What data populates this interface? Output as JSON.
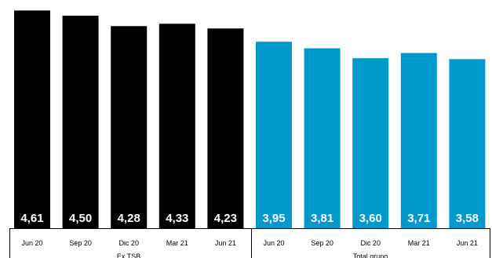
{
  "chart_data": {
    "type": "bar",
    "title": "",
    "xlabel": "",
    "ylabel": "",
    "ylim": [
      0,
      4.7
    ],
    "grid": false,
    "legend": "none",
    "categories": [
      "Jun 20",
      "Sep 20",
      "Dic 20",
      "Mar 21",
      "Jun 21",
      "Jun 20",
      "Sep 20",
      "Dic 20",
      "Mar 21",
      "Jun 21"
    ],
    "values": [
      4.61,
      4.5,
      4.28,
      4.33,
      4.23,
      3.95,
      3.81,
      3.6,
      3.71,
      3.58
    ],
    "value_labels": [
      "4,61",
      "4,50",
      "4,28",
      "4,33",
      "4,23",
      "3,95",
      "3,81",
      "3,60",
      "3,71",
      "3,58"
    ],
    "groups": [
      {
        "label": "Ex TSB",
        "start": 0,
        "count": 5,
        "color": "#000000"
      },
      {
        "label": "Total grupo",
        "start": 5,
        "count": 5,
        "color": "#0099cc"
      }
    ]
  }
}
